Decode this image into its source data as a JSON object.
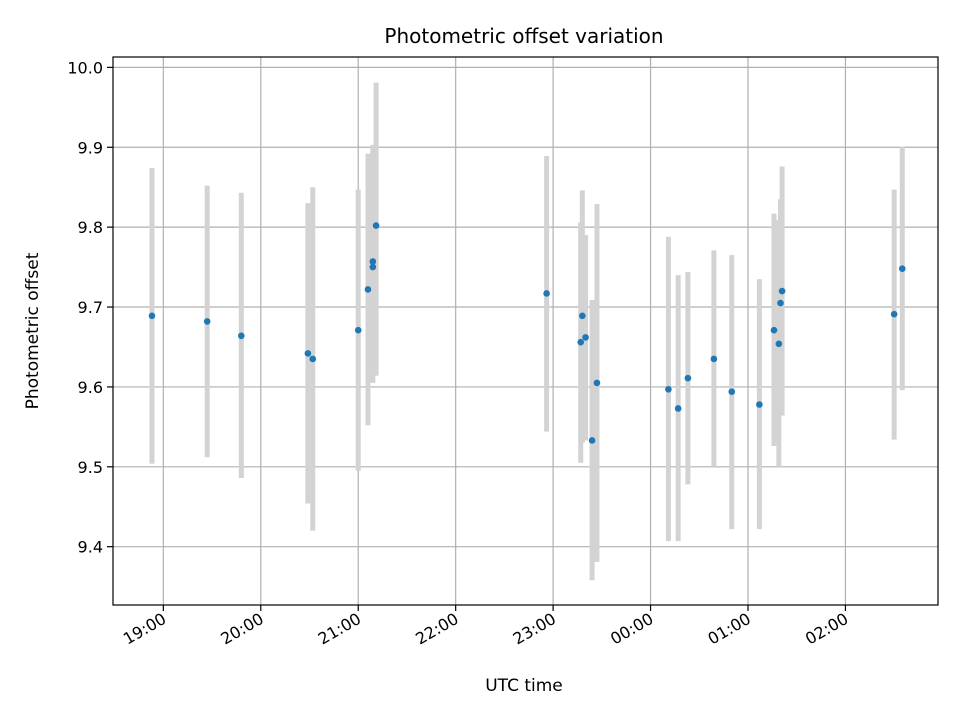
{
  "chart_data": {
    "type": "scatter",
    "title": "Photometric offset variation",
    "xlabel": "UTC time",
    "ylabel": "Photometric offset",
    "x_ticks": [
      "19:00",
      "20:00",
      "21:00",
      "22:00",
      "23:00",
      "00:00",
      "01:00",
      "02:00"
    ],
    "y_ticks": [
      "9.4",
      "9.5",
      "9.6",
      "9.7",
      "9.8",
      "9.9",
      "10.0"
    ],
    "xlim": [
      "18:29",
      "02:57"
    ],
    "ylim": [
      9.327,
      10.013
    ],
    "grid": true,
    "legend": "none",
    "colors": {
      "point": "#1f77b4",
      "errorbar": "#d3d3d3",
      "grid": "#b0b0b0"
    },
    "points": [
      {
        "t": "18:53",
        "y": 9.689,
        "lo": 9.504,
        "hi": 9.874
      },
      {
        "t": "19:27",
        "y": 9.682,
        "lo": 9.512,
        "hi": 9.852
      },
      {
        "t": "19:48",
        "y": 9.664,
        "lo": 9.486,
        "hi": 9.843
      },
      {
        "t": "20:29",
        "y": 9.642,
        "lo": 9.454,
        "hi": 9.83
      },
      {
        "t": "20:32",
        "y": 9.635,
        "lo": 9.42,
        "hi": 9.85
      },
      {
        "t": "21:00",
        "y": 9.671,
        "lo": 9.495,
        "hi": 9.847
      },
      {
        "t": "21:06",
        "y": 9.722,
        "lo": 9.552,
        "hi": 9.892
      },
      {
        "t": "21:09",
        "y": 9.75,
        "lo": 9.605,
        "hi": 9.895
      },
      {
        "t": "21:09",
        "y": 9.757,
        "lo": 9.62,
        "hi": 9.903
      },
      {
        "t": "21:11",
        "y": 9.802,
        "lo": 9.614,
        "hi": 9.981
      },
      {
        "t": "22:56",
        "y": 9.717,
        "lo": 9.544,
        "hi": 9.889
      },
      {
        "t": "23:17",
        "y": 9.656,
        "lo": 9.505,
        "hi": 9.806
      },
      {
        "t": "23:18",
        "y": 9.689,
        "lo": 9.53,
        "hi": 9.846
      },
      {
        "t": "23:20",
        "y": 9.662,
        "lo": 9.533,
        "hi": 9.79
      },
      {
        "t": "23:24",
        "y": 9.533,
        "lo": 9.358,
        "hi": 9.709
      },
      {
        "t": "23:27",
        "y": 9.605,
        "lo": 9.381,
        "hi": 9.829
      },
      {
        "t": "00:11",
        "y": 9.597,
        "lo": 9.407,
        "hi": 9.788
      },
      {
        "t": "00:17",
        "y": 9.573,
        "lo": 9.407,
        "hi": 9.74
      },
      {
        "t": "00:23",
        "y": 9.611,
        "lo": 9.478,
        "hi": 9.744
      },
      {
        "t": "00:39",
        "y": 9.635,
        "lo": 9.5,
        "hi": 9.771
      },
      {
        "t": "00:50",
        "y": 9.594,
        "lo": 9.422,
        "hi": 9.765
      },
      {
        "t": "01:07",
        "y": 9.578,
        "lo": 9.422,
        "hi": 9.735
      },
      {
        "t": "01:16",
        "y": 9.671,
        "lo": 9.526,
        "hi": 9.817
      },
      {
        "t": "01:19",
        "y": 9.654,
        "lo": 9.5,
        "hi": 9.809
      },
      {
        "t": "01:20",
        "y": 9.705,
        "lo": 9.575,
        "hi": 9.835
      },
      {
        "t": "01:21",
        "y": 9.72,
        "lo": 9.564,
        "hi": 9.876
      },
      {
        "t": "02:30",
        "y": 9.691,
        "lo": 9.534,
        "hi": 9.847
      },
      {
        "t": "02:35",
        "y": 9.748,
        "lo": 9.596,
        "hi": 9.901
      }
    ]
  }
}
